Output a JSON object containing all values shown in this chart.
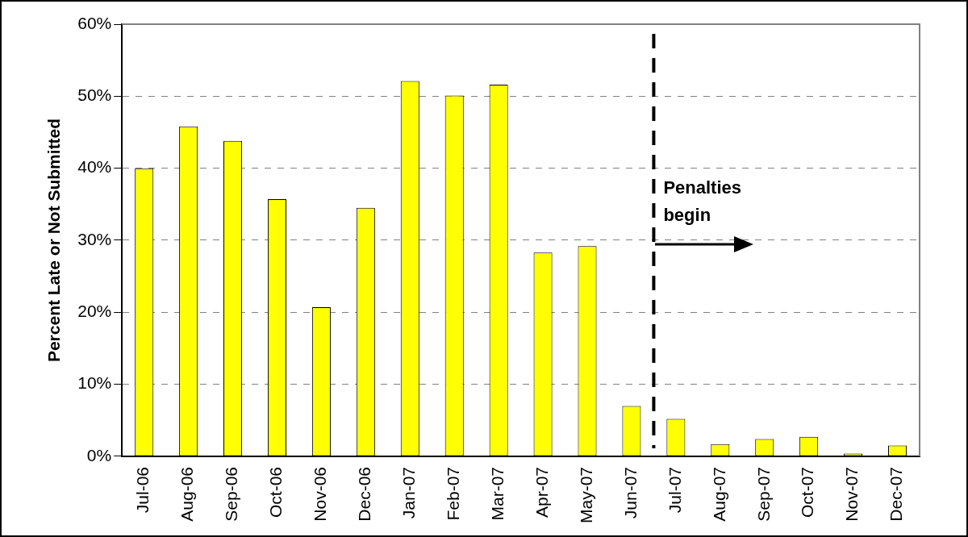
{
  "chart_data": {
    "type": "bar",
    "ylabel": "Percent Late or Not Submitted",
    "categories": [
      "Jul-06",
      "Aug-06",
      "Sep-06",
      "Oct-06",
      "Nov-06",
      "Dec-06",
      "Jan-07",
      "Feb-07",
      "Mar-07",
      "Apr-07",
      "May-07",
      "Jun-07",
      "Jul-07",
      "Aug-07",
      "Sep-07",
      "Oct-07",
      "Nov-07",
      "Dec-07"
    ],
    "values": [
      40,
      45.8,
      43.8,
      35.7,
      20.7,
      34.5,
      52.1,
      50.1,
      51.6,
      28.3,
      29.2,
      7.0,
      5.2,
      1.7,
      2.4,
      2.7,
      0.4,
      1.5
    ],
    "color": "#ffff00",
    "ylim": [
      0,
      60
    ],
    "yticks": [
      {
        "value": 0,
        "label": "0%"
      },
      {
        "value": 10,
        "label": "10%"
      },
      {
        "value": 20,
        "label": "20%"
      },
      {
        "value": 30,
        "label": "30%"
      },
      {
        "value": 40,
        "label": "40%"
      },
      {
        "value": 50,
        "label": "50%"
      },
      {
        "value": 60,
        "label": "60%"
      }
    ],
    "grid": "y",
    "ref_lines": [
      {
        "axis": "x",
        "value": "Jul-07",
        "label": "Penalties begin",
        "color": "#000000",
        "line_style": "dashed"
      }
    ]
  }
}
